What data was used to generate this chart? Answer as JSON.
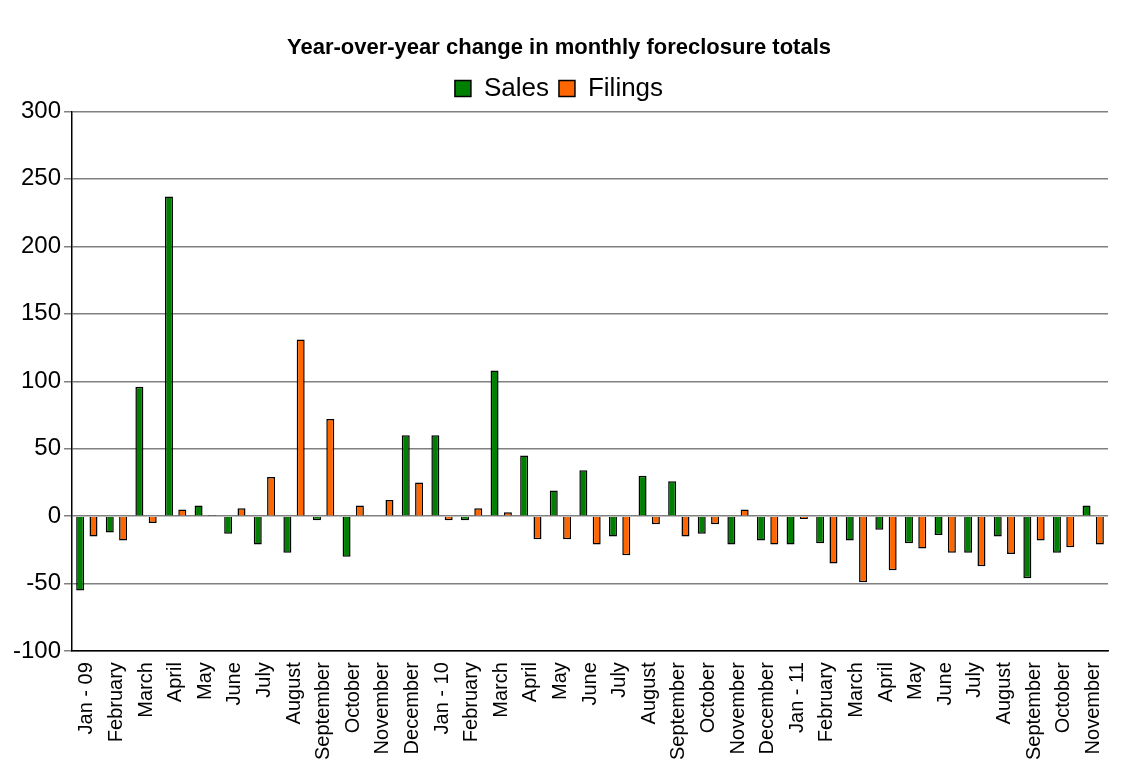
{
  "chart_data": {
    "type": "bar",
    "title": "Year-over-year change in monthly foreclosure totals",
    "categories": [
      "Jan - 09",
      "February",
      "March",
      "April",
      "May",
      "June",
      "July",
      "August",
      "September",
      "October",
      "November",
      "December",
      "Jan - 10",
      "February",
      "March",
      "April",
      "May",
      "June",
      "July",
      "August",
      "September",
      "October",
      "November",
      "December",
      "Jan - 11",
      "February",
      "March",
      "April",
      "May",
      "June",
      "July",
      "August",
      "September",
      "October",
      "November"
    ],
    "series": [
      {
        "name": "Sales",
        "color": "#008000",
        "values": [
          -55,
          -12,
          96,
          237,
          8,
          -13,
          -21,
          -27,
          -3,
          -30,
          0,
          60,
          60,
          -3,
          108,
          45,
          19,
          34,
          -15,
          30,
          26,
          -13,
          -21,
          -18,
          -21,
          -20,
          -18,
          -10,
          -20,
          -14,
          -27,
          -15,
          -46,
          -27,
          8
        ]
      },
      {
        "name": "Filings",
        "color": "#ff6600",
        "values": [
          -15,
          -18,
          -5,
          5,
          1,
          6,
          29,
          131,
          72,
          8,
          12,
          25,
          -3,
          6,
          3,
          -17,
          -17,
          -21,
          -29,
          -6,
          -15,
          -6,
          5,
          -21,
          -2,
          -35,
          -49,
          -40,
          -24,
          -27,
          -37,
          -28,
          -18,
          -23,
          -21
        ]
      }
    ],
    "ylim": [
      -100,
      300
    ],
    "yticks": [
      -100,
      -50,
      0,
      50,
      100,
      150,
      200,
      250,
      300
    ],
    "grid": "y",
    "legend": "top"
  }
}
